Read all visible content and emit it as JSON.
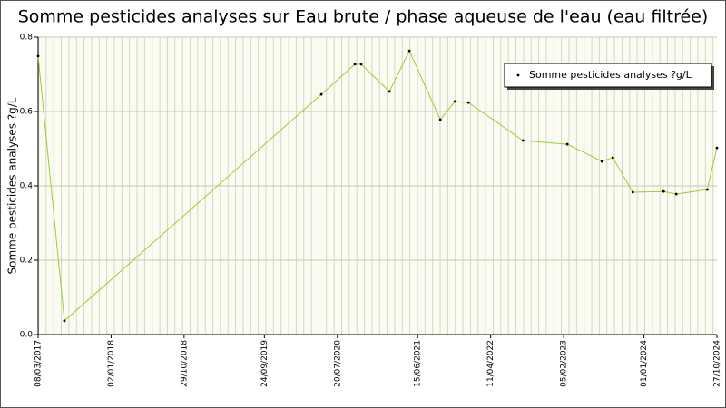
{
  "chart_data": {
    "type": "line",
    "title": "Somme pesticides analyses sur Eau brute / phase aqueuse de l'eau (eau filtrée)",
    "y_label": "Somme pesticides analyses ?g/L",
    "x": [
      "08/03/2017",
      "24/06/2017",
      "15/05/2020",
      "30/09/2020",
      "26/10/2020",
      "19/02/2021",
      "12/05/2021",
      "16/09/2021",
      "15/11/2021",
      "10/01/2022",
      "22/08/2022",
      "20/02/2023",
      "12/07/2023",
      "26/08/2023",
      "16/11/2023",
      "22/03/2024",
      "13/05/2024",
      "17/09/2024",
      "27/10/2024"
    ],
    "series": [
      {
        "name": "Somme pesticides analyses ?g/L",
        "color": "#9acd32",
        "values": [
          0.749,
          0.037,
          0.646,
          0.727,
          0.727,
          0.654,
          0.763,
          0.578,
          0.627,
          0.624,
          0.522,
          0.512,
          0.466,
          0.476,
          0.383,
          0.385,
          0.378,
          0.39,
          0.502
        ]
      }
    ],
    "xlim": [
      "08/03/2017",
      "27/10/2024"
    ],
    "xticks": [
      "08/03/2017",
      "02/01/2018",
      "29/10/2018",
      "24/09/2019",
      "20/07/2020",
      "15/06/2021",
      "11/04/2022",
      "05/02/2023",
      "01/01/2024",
      "27/10/2024"
    ],
    "ylim": [
      0,
      0.8
    ],
    "yticks": [
      {
        "value": 0,
        "label": "0.0"
      },
      0.2,
      0.4,
      0.6,
      0.8
    ],
    "grid": true,
    "legend_position": "upper right"
  }
}
